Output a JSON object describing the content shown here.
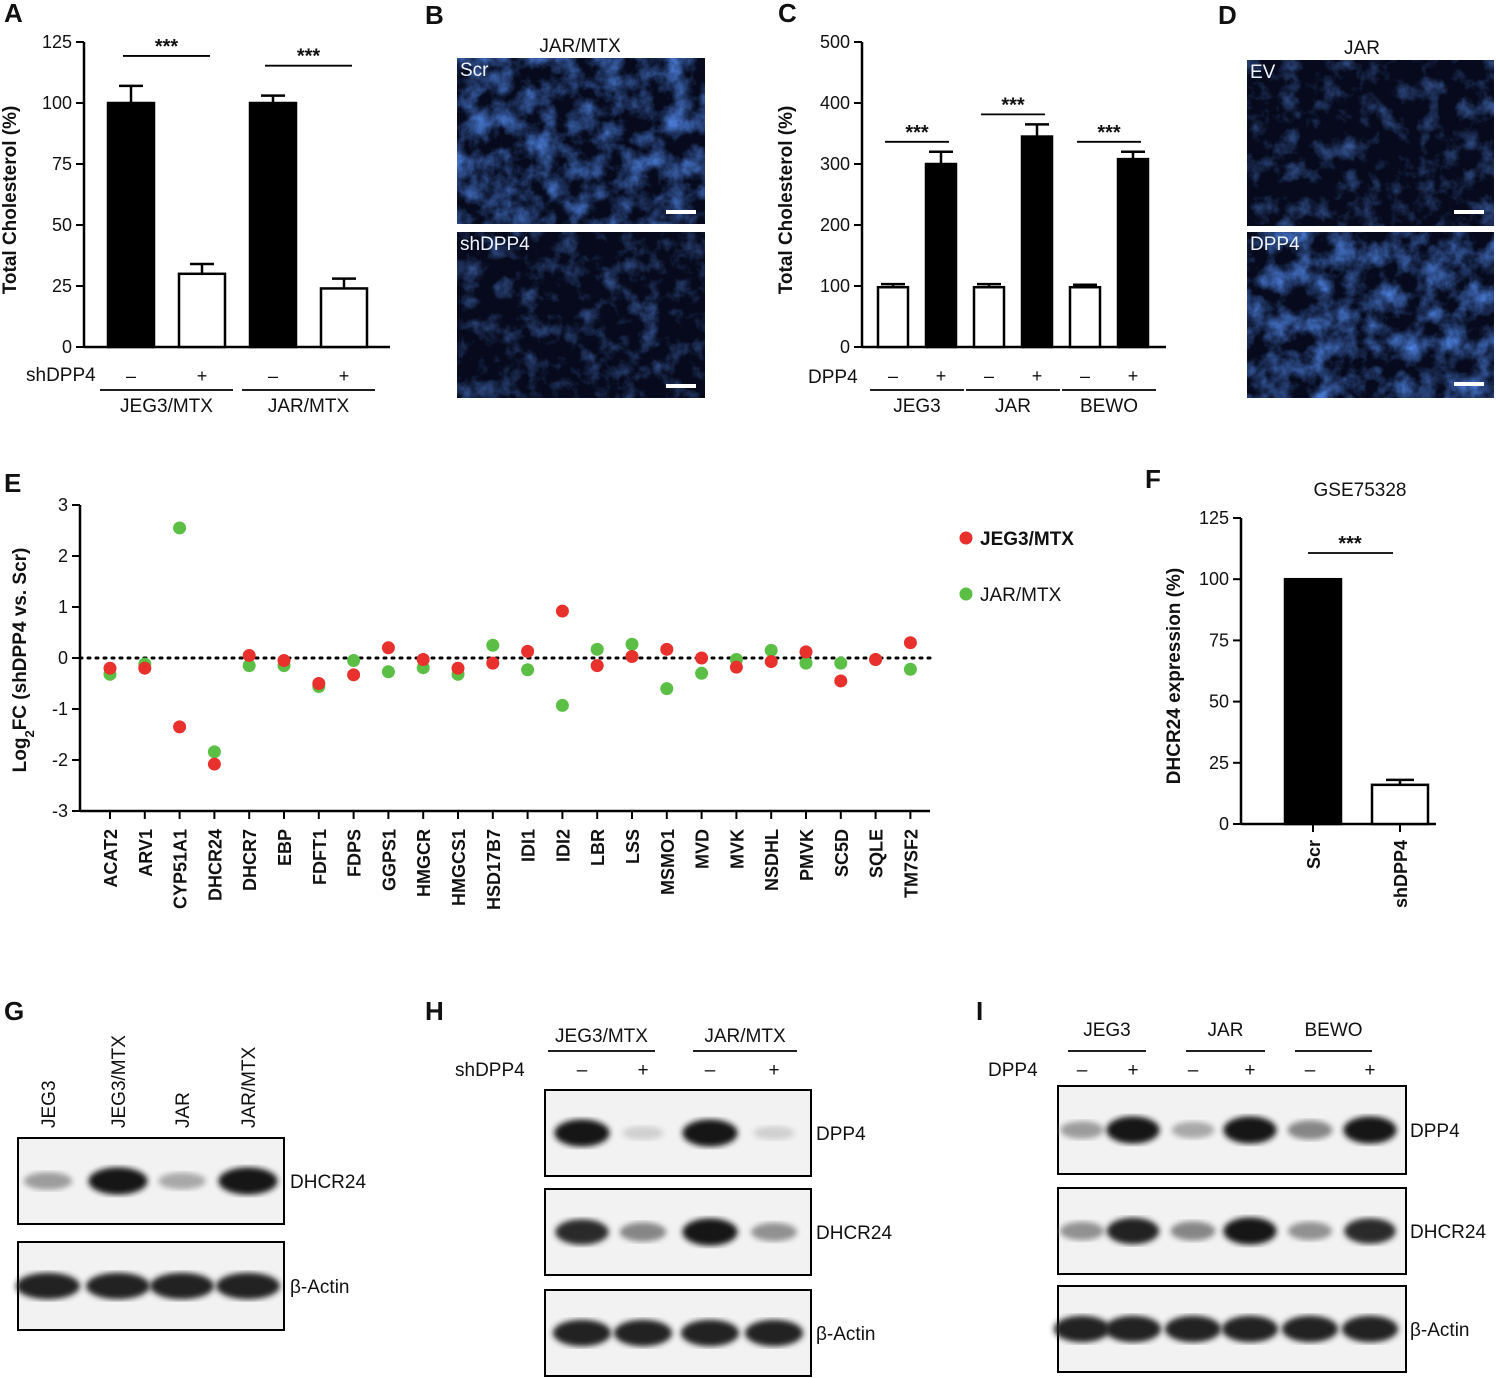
{
  "panels": {
    "A": {
      "letter": "A",
      "chart_data": {
        "type": "bar",
        "ylabel": "Total Cholesterol (%)",
        "ylim": [
          0,
          125
        ],
        "yticks": [
          0,
          25,
          50,
          75,
          100,
          125
        ],
        "factor_label": "shDPP4",
        "groups": [
          "JEG3/MTX",
          "JAR/MTX"
        ],
        "bars": [
          {
            "group": "JEG3/MTX",
            "sign": "–",
            "value": 100,
            "error": 7,
            "fill": "black"
          },
          {
            "group": "JEG3/MTX",
            "sign": "+",
            "value": 30,
            "error": 4,
            "fill": "white"
          },
          {
            "group": "JAR/MTX",
            "sign": "–",
            "value": 100,
            "error": 3,
            "fill": "black"
          },
          {
            "group": "JAR/MTX",
            "sign": "+",
            "value": 24,
            "error": 4,
            "fill": "white"
          }
        ],
        "significance": [
          "***",
          "***"
        ]
      }
    },
    "B": {
      "letter": "B",
      "title": "JAR/MTX",
      "images": [
        "Scr",
        "shDPP4"
      ]
    },
    "C": {
      "letter": "C",
      "chart_data": {
        "type": "bar",
        "ylabel": "Total Cholesterol (%)",
        "ylim": [
          0,
          500
        ],
        "yticks": [
          0,
          100,
          200,
          300,
          400,
          500
        ],
        "factor_label": "DPP4",
        "groups": [
          "JEG3",
          "JAR",
          "BEWO"
        ],
        "bars": [
          {
            "group": "JEG3",
            "sign": "–",
            "value": 98,
            "error": 5,
            "fill": "white"
          },
          {
            "group": "JEG3",
            "sign": "+",
            "value": 300,
            "error": 20,
            "fill": "black"
          },
          {
            "group": "JAR",
            "sign": "–",
            "value": 98,
            "error": 5,
            "fill": "white"
          },
          {
            "group": "JAR",
            "sign": "+",
            "value": 345,
            "error": 20,
            "fill": "black"
          },
          {
            "group": "BEWO",
            "sign": "–",
            "value": 98,
            "error": 4,
            "fill": "white"
          },
          {
            "group": "BEWO",
            "sign": "+",
            "value": 308,
            "error": 12,
            "fill": "black"
          }
        ],
        "significance": [
          "***",
          "***",
          "***"
        ]
      }
    },
    "D": {
      "letter": "D",
      "title": "JAR",
      "images": [
        "EV",
        "DPP4"
      ]
    },
    "E": {
      "letter": "E",
      "chart_data": {
        "type": "scatter",
        "ylabel_main": "Log",
        "ylabel_sub": "2",
        "ylabel_rest": "FC (shDPP4 vs. Scr)",
        "ylim": [
          -3,
          3
        ],
        "yticks": [
          -3,
          -2,
          -1,
          0,
          1,
          2,
          3
        ],
        "reference_line": 0,
        "categories": [
          "ACAT2",
          "ARV1",
          "CYP51A1",
          "DHCR24",
          "DHCR7",
          "EBP",
          "FDFT1",
          "FDPS",
          "GGPS1",
          "HMGCR",
          "HMGCS1",
          "HSD17B7",
          "IDI1",
          "IDI2",
          "LBR",
          "LSS",
          "MSMO1",
          "MVD",
          "MVK",
          "NSDHL",
          "PMVK",
          "SC5D",
          "SQLE",
          "TM7SF2"
        ],
        "series": [
          {
            "name": "JEG3/MTX",
            "color": "#e8302c",
            "values": [
              -0.2,
              -0.2,
              -1.35,
              -2.08,
              0.05,
              -0.05,
              -0.5,
              -0.33,
              0.2,
              -0.03,
              -0.2,
              -0.1,
              0.13,
              0.92,
              -0.15,
              0.03,
              0.17,
              0.0,
              -0.18,
              -0.07,
              0.12,
              -0.45,
              -0.03,
              0.3
            ]
          },
          {
            "name": "JAR/MTX",
            "color": "#5cbf45",
            "values": [
              -0.32,
              -0.12,
              2.55,
              -1.84,
              -0.15,
              -0.15,
              -0.56,
              -0.05,
              -0.27,
              -0.19,
              -0.32,
              0.25,
              -0.23,
              -0.93,
              0.17,
              0.27,
              -0.6,
              -0.3,
              -0.03,
              0.15,
              -0.1,
              -0.1,
              -0.03,
              -0.22
            ]
          }
        ],
        "legend_position": "top-right"
      }
    },
    "F": {
      "letter": "F",
      "title": "GSE75328",
      "chart_data": {
        "type": "bar",
        "ylabel": "DHCR24 expression (%)",
        "ylim": [
          0,
          125
        ],
        "yticks": [
          0,
          25,
          50,
          75,
          100,
          125
        ],
        "categories": [
          "Scr",
          "shDPP4"
        ],
        "values": [
          100,
          16
        ],
        "errors": [
          0,
          2
        ],
        "fills": [
          "black",
          "white"
        ],
        "significance": "***"
      }
    },
    "G": {
      "letter": "G",
      "lanes": [
        "JEG3",
        "JEG3/MTX",
        "JAR",
        "JAR/MTX"
      ],
      "blots": [
        {
          "label": "DHCR24",
          "intensity": [
            0.35,
            0.95,
            0.3,
            0.95
          ]
        },
        {
          "label": "β-Actin",
          "intensity": [
            0.9,
            0.9,
            0.9,
            0.9
          ]
        }
      ]
    },
    "H": {
      "letter": "H",
      "groups": [
        "JEG3/MTX",
        "JAR/MTX"
      ],
      "factor_label": "shDPP4",
      "signs": [
        "–",
        "+",
        "–",
        "+"
      ],
      "blots": [
        {
          "label": "DPP4",
          "intensity": [
            0.95,
            0.12,
            0.95,
            0.12
          ]
        },
        {
          "label": "DHCR24",
          "intensity": [
            0.85,
            0.45,
            0.95,
            0.4
          ]
        },
        {
          "label": "β-Actin",
          "intensity": [
            0.9,
            0.9,
            0.9,
            0.9
          ]
        }
      ]
    },
    "I": {
      "letter": "I",
      "groups": [
        "JEG3",
        "JAR",
        "BEWO"
      ],
      "factor_label": "DPP4",
      "signs": [
        "–",
        "+",
        "–",
        "+",
        "–",
        "+"
      ],
      "blots": [
        {
          "label": "DPP4",
          "intensity": [
            0.35,
            0.95,
            0.3,
            0.95,
            0.45,
            0.95
          ]
        },
        {
          "label": "DHCR24",
          "intensity": [
            0.4,
            0.9,
            0.45,
            0.95,
            0.4,
            0.85
          ]
        },
        {
          "label": "β-Actin",
          "intensity": [
            0.9,
            0.9,
            0.9,
            0.9,
            0.9,
            0.9
          ]
        }
      ]
    }
  }
}
